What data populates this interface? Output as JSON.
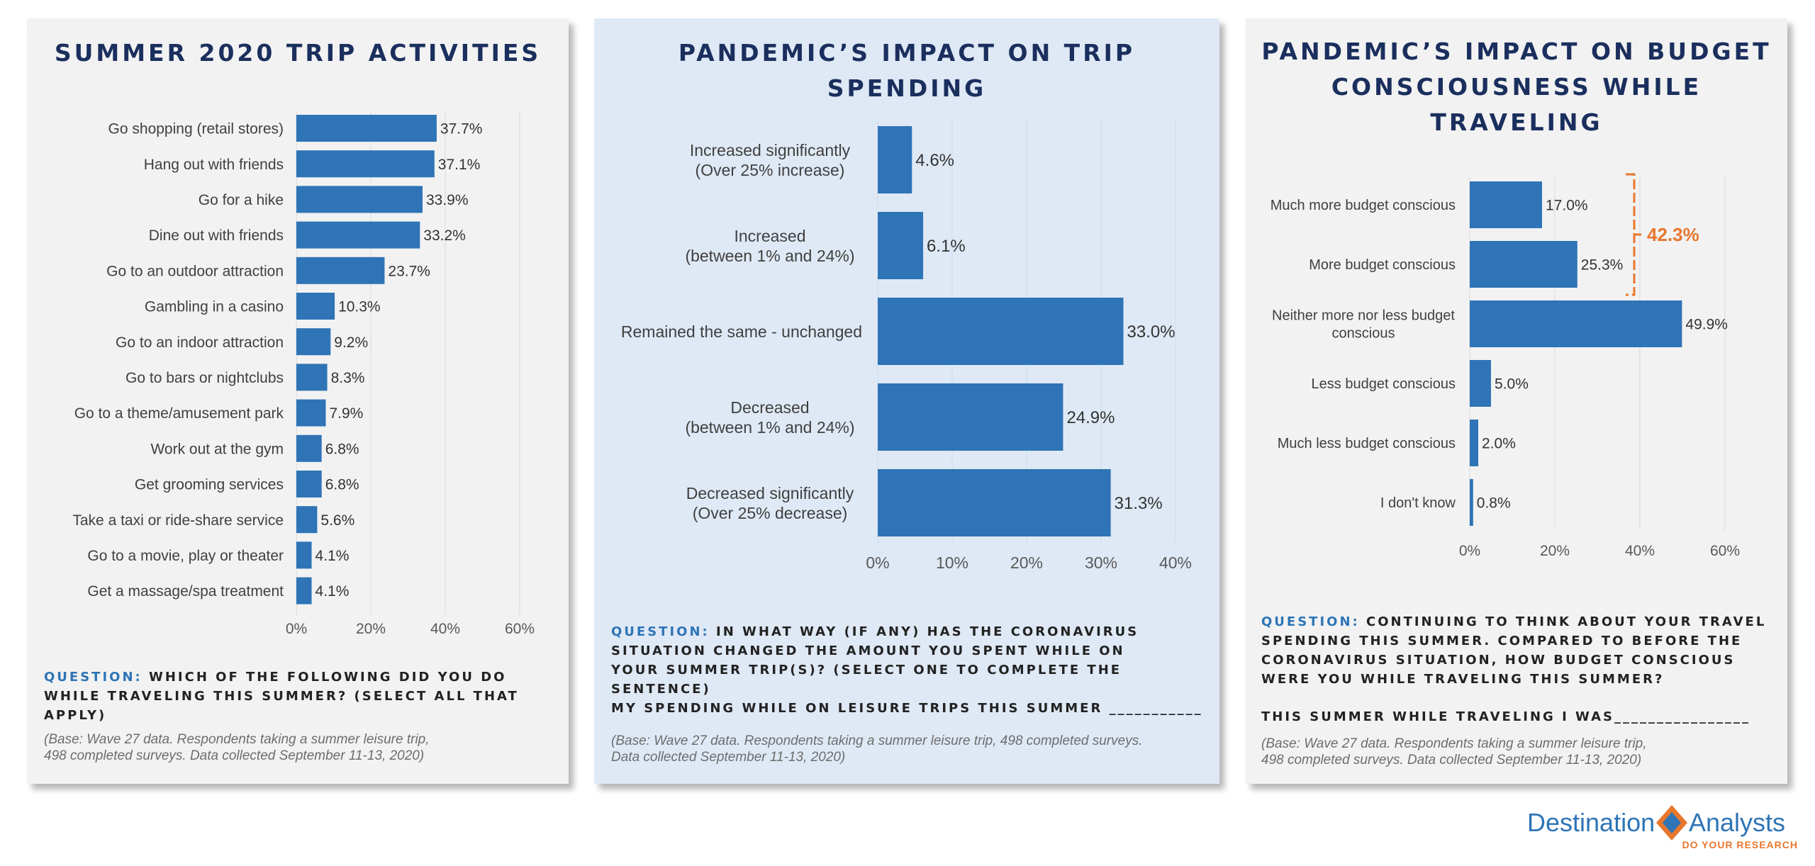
{
  "panels": [
    {
      "title": "SUMMER 2020 TRIP ACTIVITIES",
      "question_label": "QUESTION:",
      "question_text": "WHICH OF THE FOLLOWING DID YOU DO WHILE TRAVELING THIS SUMMER?  (SELECT ALL THAT APPLY)",
      "base_line1": "(Base: Wave 27 data. Respondents taking a summer leisure trip,",
      "base_line2": "498 completed surveys. Data collected September 11-13, 2020)"
    },
    {
      "title": "PANDEMIC’S IMPACT ON TRIP SPENDING",
      "question_label": "QUESTION:",
      "question_text": "IN WHAT WAY (IF ANY) HAS THE CORONAVIRUS SITUATION CHANGED THE AMOUNT YOU SPENT WHILE ON YOUR SUMMER TRIP(S)? (SELECT ONE TO COMPLETE THE SENTENCE)",
      "sentence": "MY SPENDING WHILE ON LEISURE TRIPS THIS SUMMER ___________",
      "base_line1": "(Base: Wave 27 data. Respondents taking a summer leisure trip, 498 completed surveys.",
      "base_line2": "Data collected September 11-13, 2020)"
    },
    {
      "title_line1": "PANDEMIC’S IMPACT ON BUDGET",
      "title_line2": "CONSCIOUSNESS WHILE TRAVELING",
      "question_label": "QUESTION:",
      "question_text": "CONTINUING TO THINK ABOUT YOUR TRAVEL SPENDING THIS SUMMER.  COMPARED TO BEFORE THE CORONAVIRUS SITUATION, HOW BUDGET CONSCIOUS WERE YOU WHILE TRAVELING THIS SUMMER?",
      "sentence": "THIS SUMMER WHILE TRAVELING I WAS________________",
      "base_line1": "(Base: Wave 27 data. Respondents taking a summer leisure trip,",
      "base_line2": "498 completed surveys. Data collected September 11-13, 2020)"
    }
  ],
  "chart_data": [
    {
      "type": "bar",
      "orientation": "horizontal",
      "title": "SUMMER 2020 TRIP ACTIVITIES",
      "categories": [
        "Go shopping (retail stores)",
        "Hang out with friends",
        "Go for a hike",
        "Dine out with friends",
        "Go to an outdoor attraction",
        "Gambling in a casino",
        "Go to an indoor attraction",
        "Go to bars or nightclubs",
        "Go to a theme/amusement park",
        "Work out at the gym",
        "Get grooming services",
        "Take a taxi or ride-share service",
        "Go to a movie, play or theater",
        "Get a massage/spa treatment"
      ],
      "values": [
        37.7,
        37.1,
        33.9,
        33.2,
        23.7,
        10.3,
        9.2,
        8.3,
        7.9,
        6.8,
        6.8,
        5.6,
        4.1,
        4.1
      ],
      "value_labels": [
        "37.7%",
        "37.1%",
        "33.9%",
        "33.2%",
        "23.7%",
        "10.3%",
        "9.2%",
        "8.3%",
        "7.9%",
        "6.8%",
        "6.8%",
        "5.6%",
        "4.1%",
        "4.1%"
      ],
      "xlim": [
        0,
        60
      ],
      "xticks": [
        0,
        20,
        40,
        60
      ],
      "xtick_labels": [
        "0%",
        "20%",
        "40%",
        "60%"
      ],
      "grid": true,
      "color": "#2e74b6"
    },
    {
      "type": "bar",
      "orientation": "horizontal",
      "title": "PANDEMIC’S IMPACT ON TRIP SPENDING",
      "categories": [
        [
          "Increased significantly",
          "(Over 25% increase)"
        ],
        [
          "Increased",
          "(between 1% and 24%)"
        ],
        [
          "Remained the same - unchanged"
        ],
        [
          "Decreased",
          "(between 1% and 24%)"
        ],
        [
          "Decreased significantly",
          "(Over 25% decrease)"
        ]
      ],
      "values": [
        4.6,
        6.1,
        33.0,
        24.9,
        31.3
      ],
      "value_labels": [
        "4.6%",
        "6.1%",
        "33.0%",
        "24.9%",
        "31.3%"
      ],
      "xlim": [
        0,
        40
      ],
      "xticks": [
        0,
        10,
        20,
        30,
        40
      ],
      "xtick_labels": [
        "0%",
        "10%",
        "20%",
        "30%",
        "40%"
      ],
      "grid": true,
      "color": "#2e74b6"
    },
    {
      "type": "bar",
      "orientation": "horizontal",
      "title": "PANDEMIC’S IMPACT ON BUDGET CONSCIOUSNESS WHILE TRAVELING",
      "categories": [
        [
          "Much more budget conscious"
        ],
        [
          "More budget conscious"
        ],
        [
          "Neither more nor less budget",
          "conscious"
        ],
        [
          "Less budget conscious"
        ],
        [
          "Much less budget conscious"
        ],
        [
          "I don't know"
        ]
      ],
      "values": [
        17.0,
        25.3,
        49.9,
        5.0,
        2.0,
        0.8
      ],
      "value_labels": [
        "17.0%",
        "25.3%",
        "49.9%",
        "5.0%",
        "2.0%",
        "0.8%"
      ],
      "xlim": [
        0,
        60
      ],
      "xticks": [
        0,
        20,
        40,
        60
      ],
      "xtick_labels": [
        "0%",
        "20%",
        "40%",
        "60%"
      ],
      "grid": true,
      "color": "#2e74b6",
      "annotation": {
        "text": "42.3%",
        "spans": [
          0,
          1
        ],
        "color": "#e8772e"
      }
    }
  ],
  "logo": {
    "left_text": "Destination",
    "right_text": "Analysts",
    "tagline": "DO YOUR RESEARCH",
    "primary_color": "#2e74b6",
    "accent_color": "#e8772e"
  }
}
